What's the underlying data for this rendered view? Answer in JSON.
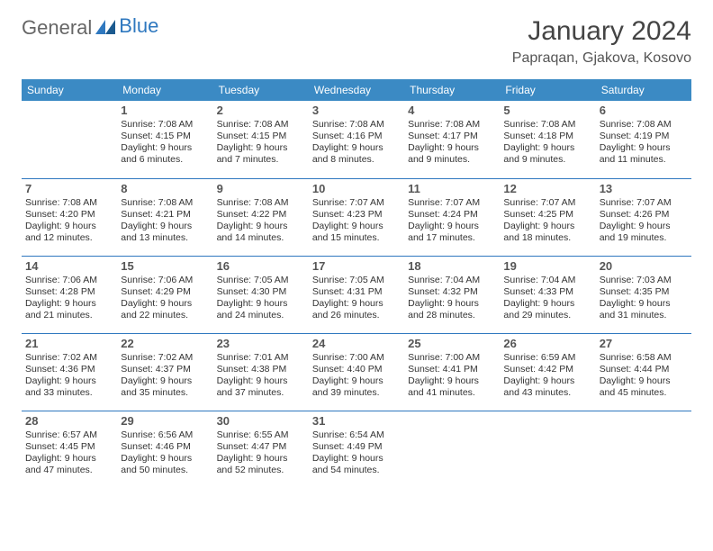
{
  "colors": {
    "header_bg": "#3b8ac4",
    "header_text": "#ffffff",
    "row_border": "#2f78bf",
    "daynum": "#555555",
    "body_text": "#333333",
    "title": "#444444",
    "logo_general": "#666666",
    "logo_blue": "#2f78bf",
    "background": "#ffffff"
  },
  "logo": {
    "part1": "General",
    "part2": "Blue"
  },
  "title": "January 2024",
  "location": "Papraqan, Gjakova, Kosovo",
  "weekdays": [
    "Sunday",
    "Monday",
    "Tuesday",
    "Wednesday",
    "Thursday",
    "Friday",
    "Saturday"
  ],
  "grid": [
    [
      null,
      {
        "n": "1",
        "sunrise": "7:08 AM",
        "sunset": "4:15 PM",
        "day_h": 9,
        "day_m": 6
      },
      {
        "n": "2",
        "sunrise": "7:08 AM",
        "sunset": "4:15 PM",
        "day_h": 9,
        "day_m": 7
      },
      {
        "n": "3",
        "sunrise": "7:08 AM",
        "sunset": "4:16 PM",
        "day_h": 9,
        "day_m": 8
      },
      {
        "n": "4",
        "sunrise": "7:08 AM",
        "sunset": "4:17 PM",
        "day_h": 9,
        "day_m": 9
      },
      {
        "n": "5",
        "sunrise": "7:08 AM",
        "sunset": "4:18 PM",
        "day_h": 9,
        "day_m": 9
      },
      {
        "n": "6",
        "sunrise": "7:08 AM",
        "sunset": "4:19 PM",
        "day_h": 9,
        "day_m": 11
      }
    ],
    [
      {
        "n": "7",
        "sunrise": "7:08 AM",
        "sunset": "4:20 PM",
        "day_h": 9,
        "day_m": 12
      },
      {
        "n": "8",
        "sunrise": "7:08 AM",
        "sunset": "4:21 PM",
        "day_h": 9,
        "day_m": 13
      },
      {
        "n": "9",
        "sunrise": "7:08 AM",
        "sunset": "4:22 PM",
        "day_h": 9,
        "day_m": 14
      },
      {
        "n": "10",
        "sunrise": "7:07 AM",
        "sunset": "4:23 PM",
        "day_h": 9,
        "day_m": 15
      },
      {
        "n": "11",
        "sunrise": "7:07 AM",
        "sunset": "4:24 PM",
        "day_h": 9,
        "day_m": 17
      },
      {
        "n": "12",
        "sunrise": "7:07 AM",
        "sunset": "4:25 PM",
        "day_h": 9,
        "day_m": 18
      },
      {
        "n": "13",
        "sunrise": "7:07 AM",
        "sunset": "4:26 PM",
        "day_h": 9,
        "day_m": 19
      }
    ],
    [
      {
        "n": "14",
        "sunrise": "7:06 AM",
        "sunset": "4:28 PM",
        "day_h": 9,
        "day_m": 21
      },
      {
        "n": "15",
        "sunrise": "7:06 AM",
        "sunset": "4:29 PM",
        "day_h": 9,
        "day_m": 22
      },
      {
        "n": "16",
        "sunrise": "7:05 AM",
        "sunset": "4:30 PM",
        "day_h": 9,
        "day_m": 24
      },
      {
        "n": "17",
        "sunrise": "7:05 AM",
        "sunset": "4:31 PM",
        "day_h": 9,
        "day_m": 26
      },
      {
        "n": "18",
        "sunrise": "7:04 AM",
        "sunset": "4:32 PM",
        "day_h": 9,
        "day_m": 28
      },
      {
        "n": "19",
        "sunrise": "7:04 AM",
        "sunset": "4:33 PM",
        "day_h": 9,
        "day_m": 29
      },
      {
        "n": "20",
        "sunrise": "7:03 AM",
        "sunset": "4:35 PM",
        "day_h": 9,
        "day_m": 31
      }
    ],
    [
      {
        "n": "21",
        "sunrise": "7:02 AM",
        "sunset": "4:36 PM",
        "day_h": 9,
        "day_m": 33
      },
      {
        "n": "22",
        "sunrise": "7:02 AM",
        "sunset": "4:37 PM",
        "day_h": 9,
        "day_m": 35
      },
      {
        "n": "23",
        "sunrise": "7:01 AM",
        "sunset": "4:38 PM",
        "day_h": 9,
        "day_m": 37
      },
      {
        "n": "24",
        "sunrise": "7:00 AM",
        "sunset": "4:40 PM",
        "day_h": 9,
        "day_m": 39
      },
      {
        "n": "25",
        "sunrise": "7:00 AM",
        "sunset": "4:41 PM",
        "day_h": 9,
        "day_m": 41
      },
      {
        "n": "26",
        "sunrise": "6:59 AM",
        "sunset": "4:42 PM",
        "day_h": 9,
        "day_m": 43
      },
      {
        "n": "27",
        "sunrise": "6:58 AM",
        "sunset": "4:44 PM",
        "day_h": 9,
        "day_m": 45
      }
    ],
    [
      {
        "n": "28",
        "sunrise": "6:57 AM",
        "sunset": "4:45 PM",
        "day_h": 9,
        "day_m": 47
      },
      {
        "n": "29",
        "sunrise": "6:56 AM",
        "sunset": "4:46 PM",
        "day_h": 9,
        "day_m": 50
      },
      {
        "n": "30",
        "sunrise": "6:55 AM",
        "sunset": "4:47 PM",
        "day_h": 9,
        "day_m": 52
      },
      {
        "n": "31",
        "sunrise": "6:54 AM",
        "sunset": "4:49 PM",
        "day_h": 9,
        "day_m": 54
      },
      null,
      null,
      null
    ]
  ],
  "labels": {
    "sunrise": "Sunrise:",
    "sunset": "Sunset:",
    "daylight": "Daylight:",
    "hours": "hours",
    "and": "and",
    "minutes": "minutes."
  }
}
